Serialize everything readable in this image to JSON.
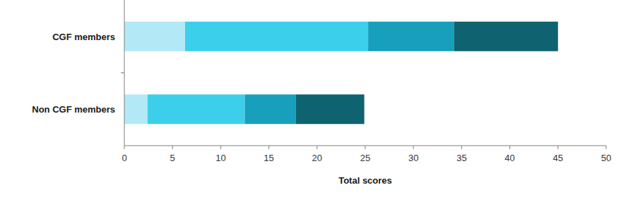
{
  "chart_data": {
    "type": "bar",
    "orientation": "horizontal",
    "stacked": true,
    "grid": false,
    "xlabel": "Total scores",
    "categories": [
      "CGF members",
      "Non CGF members"
    ],
    "series": [
      {
        "color": "#b3e9f6",
        "values": [
          6.3,
          2.4
        ]
      },
      {
        "color": "#3ccfec",
        "values": [
          19.0,
          10.1
        ]
      },
      {
        "color": "#179fbc",
        "values": [
          8.9,
          5.3
        ]
      },
      {
        "color": "#0f6270",
        "values": [
          10.8,
          7.1
        ]
      }
    ],
    "xlim": [
      0,
      50
    ],
    "xticks": [
      0,
      5,
      10,
      15,
      20,
      25,
      30,
      35,
      40,
      45,
      50
    ]
  }
}
